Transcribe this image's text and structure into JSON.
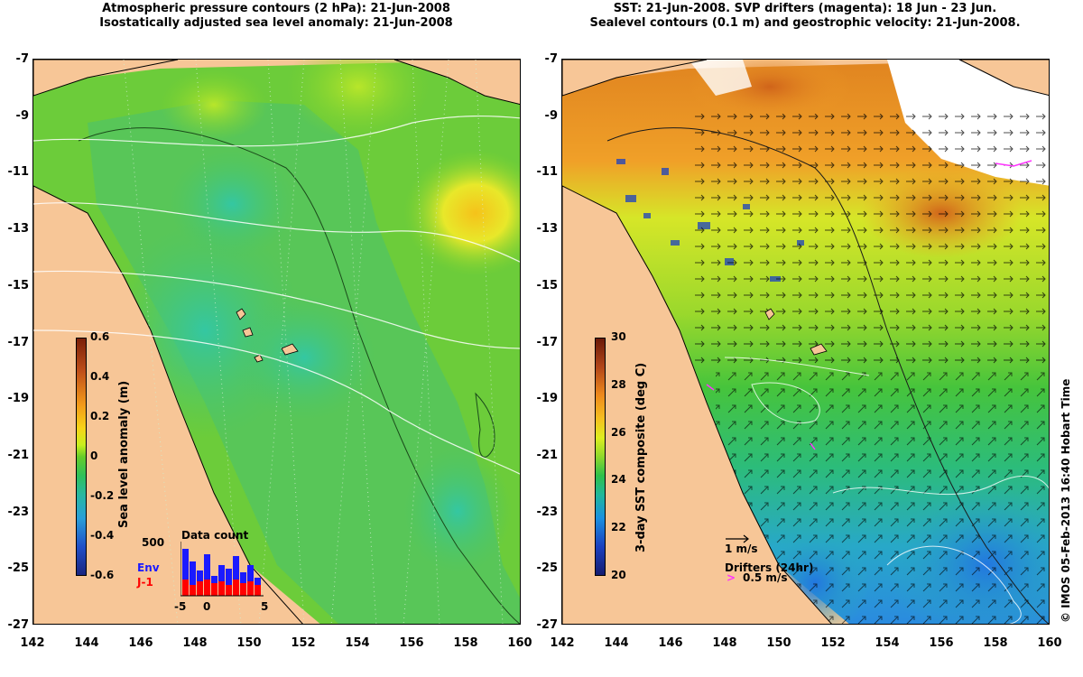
{
  "left_map": {
    "title_line1": "Atmospheric pressure contours (2 hPa): 21-Jun-2008",
    "title_line2": "Isostatically adjusted sea level anomaly: 21-Jun-2008",
    "colorbar_label": "Sea level anomaly (m)",
    "colorbar_ticks": [
      "0.6",
      "0.4",
      "0.2",
      "0",
      "-0.2",
      "-0.4",
      "-0.6"
    ],
    "histogram": {
      "title": "Data count",
      "y_label": "500",
      "series": [
        {
          "name": "Env",
          "color": "#1a1aff"
        },
        {
          "name": "J-1",
          "color": "#ff0000"
        }
      ],
      "x_ticks": [
        "-5",
        "0",
        "5"
      ]
    }
  },
  "right_map": {
    "title_line1": "SST: 21-Jun-2008. SVP drifters (magenta): 18 Jun - 23 Jun.",
    "title_line2": "Sealevel contours (0.1 m) and geostrophic velocity: 21-Jun-2008.",
    "colorbar_label": "3-day SST composite (deg C)",
    "colorbar_ticks": [
      "30",
      "28",
      "26",
      "24",
      "22",
      "20"
    ],
    "velocity_scale_label": "1 m/s",
    "drifters_label": "Drifters (24hr)",
    "drifters_speed_label": "0.5 m/s",
    "drifter_color": "#ff33ff"
  },
  "axes": {
    "y_ticks": [
      "-7",
      "-9",
      "-11",
      "-13",
      "-15",
      "-17",
      "-19",
      "-21",
      "-23",
      "-25",
      "-27"
    ],
    "x_ticks": [
      "142",
      "144",
      "146",
      "148",
      "150",
      "152",
      "154",
      "156",
      "158",
      "160"
    ]
  },
  "credit": "© IMOS 05-Feb-2013 16:40 Hobart Time"
}
